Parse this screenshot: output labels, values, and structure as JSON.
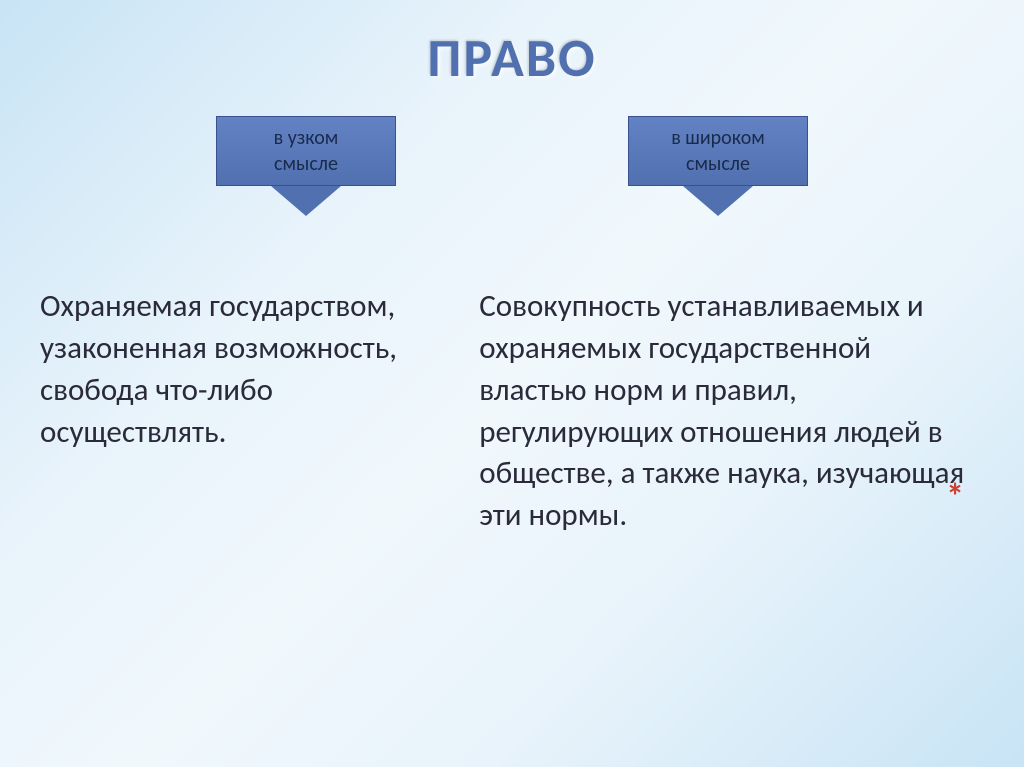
{
  "title": "ПРАВО",
  "arrows": {
    "narrow": {
      "line1": "в узком",
      "line2": "смысле"
    },
    "wide": {
      "line1": "в широком",
      "line2": "смысле"
    }
  },
  "content": {
    "narrow_text": "Охраняемая государством, узаконенная возможность, свобода что-либо осуществлять.",
    "wide_text": "Совокупность устанавливаемых и охраняемых государственной властью норм и правил, регулирующих отношения людей в обществе, а также наука, изучающая эти нормы."
  },
  "asterisk": "*",
  "styling": {
    "title_color": "#5070b0",
    "arrow_bg_start": "#6282c4",
    "arrow_bg_end": "#5070b0",
    "arrow_border": "#3a5090",
    "text_color": "#2a2a3a",
    "asterisk_color": "#d04030",
    "bg_gradient_outer": "#c8e4f5",
    "bg_gradient_inner": "#f0f8fc"
  }
}
